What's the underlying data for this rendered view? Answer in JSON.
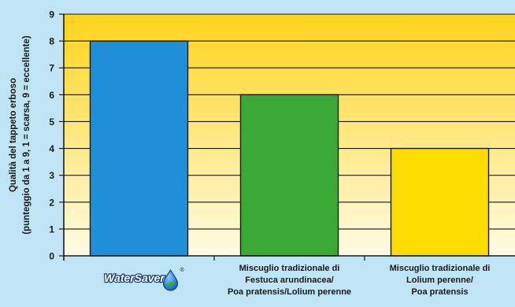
{
  "chart_data": {
    "type": "bar",
    "categories": [
      {
        "lines": [],
        "logo": "WaterSaver",
        "logo_mark": "®"
      },
      {
        "lines": [
          "Miscuglio tradizionale di",
          "Festuca arundinacea/",
          "Poa pratensis/Lolium perenne"
        ]
      },
      {
        "lines": [
          "Miscuglio tradizionale di",
          "Lolium perenne/",
          "Poa pratensis"
        ]
      }
    ],
    "values": [
      8,
      6,
      4
    ],
    "colors": [
      "#1e90d8",
      "#3aa935",
      "#ffdd00"
    ],
    "ylabel_lines": [
      "Qualità del tappeto erboso",
      "(punteggio da 1 a 9, 1 = scarsa, 9 = eccellente)"
    ],
    "ylim": [
      0,
      9
    ],
    "yticks": [
      "0",
      "1",
      "2",
      "3",
      "4",
      "5",
      "6",
      "7",
      "8",
      "9"
    ],
    "grid": true,
    "background_gradient": [
      "#ffd31a",
      "#fffbe6"
    ],
    "bar_outline": "#1a1a1a"
  }
}
